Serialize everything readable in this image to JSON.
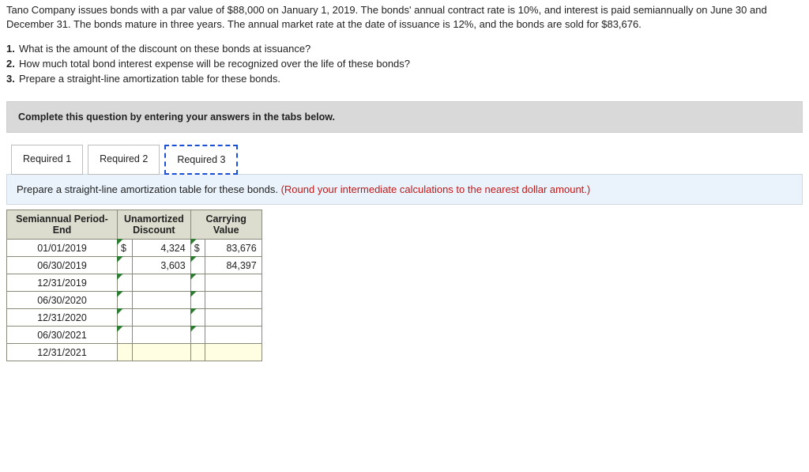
{
  "intro": "Tano Company issues bonds with a par value of $88,000 on January 1, 2019. The bonds' annual contract rate is 10%, and interest is paid semiannually on June 30 and December 31. The bonds mature in three years. The annual market rate at the date of issuance is 12%, and the bonds are sold for $83,676.",
  "questions": [
    {
      "n": "1.",
      "t": "What is the amount of the discount on these bonds at issuance?"
    },
    {
      "n": "2.",
      "t": "How much total bond interest expense will be recognized over the life of these bonds?"
    },
    {
      "n": "3.",
      "t": "Prepare a straight-line amortization table for these bonds."
    }
  ],
  "instruction": "Complete this question by entering your answers in the tabs below.",
  "tabs": [
    "Required 1",
    "Required 2",
    "Required 3"
  ],
  "active_tab": 2,
  "prompt_main": "Prepare a straight-line amortization table for these bonds. ",
  "prompt_hint": "(Round your intermediate calculations to the nearest dollar amount.)",
  "table": {
    "headers": [
      "Semiannual Period-\nEnd",
      "Unamortized\nDiscount",
      "Carrying\nValue"
    ],
    "rows": [
      {
        "period": "01/01/2019",
        "disc_cur": "$",
        "disc": "4,324",
        "carry_cur": "$",
        "carry": "83,676",
        "tick": true
      },
      {
        "period": "06/30/2019",
        "disc_cur": "",
        "disc": "3,603",
        "carry_cur": "",
        "carry": "84,397",
        "tick": true
      },
      {
        "period": "12/31/2019",
        "disc_cur": "",
        "disc": "",
        "carry_cur": "",
        "carry": "",
        "tick": true
      },
      {
        "period": "06/30/2020",
        "disc_cur": "",
        "disc": "",
        "carry_cur": "",
        "carry": "",
        "tick": true
      },
      {
        "period": "12/31/2020",
        "disc_cur": "",
        "disc": "",
        "carry_cur": "",
        "carry": "",
        "tick": true
      },
      {
        "period": "06/30/2021",
        "disc_cur": "",
        "disc": "",
        "carry_cur": "",
        "carry": "",
        "tick": true
      },
      {
        "period": "12/31/2021",
        "disc_cur": "",
        "disc": "",
        "carry_cur": "",
        "carry": "",
        "tick": false,
        "last": true
      }
    ]
  }
}
